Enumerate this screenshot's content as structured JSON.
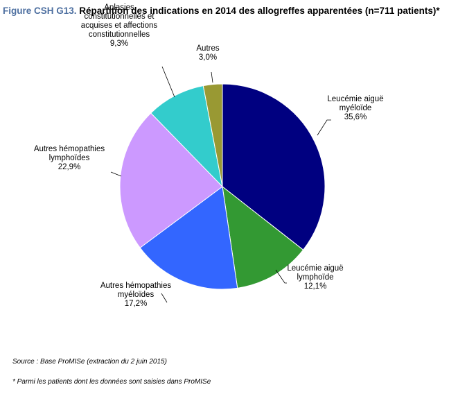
{
  "figure": {
    "prefix": "Figure CSH G13.",
    "title": "Répartition des indications en 2014 des allogreffes apparentées (n=711 patients)*"
  },
  "chart_data": {
    "type": "pie",
    "start_angle_deg": 0,
    "direction": "clockwise",
    "slices": [
      {
        "label_lines": [
          "Leucémie aiguë",
          "myéloïde"
        ],
        "value": 35.6,
        "pct_text": "35,6%",
        "color": "#000080"
      },
      {
        "label_lines": [
          "Leucémie aiguë",
          "lymphoïde"
        ],
        "value": 12.1,
        "pct_text": "12,1%",
        "color": "#339933"
      },
      {
        "label_lines": [
          "Autres hémopathies",
          "myéloïdes"
        ],
        "value": 17.2,
        "pct_text": "17,2%",
        "color": "#3366ff"
      },
      {
        "label_lines": [
          "Autres hémopathies",
          "lymphoïdes"
        ],
        "value": 22.9,
        "pct_text": "22,9%",
        "color": "#cc99ff"
      },
      {
        "label_lines": [
          "Aplasies",
          "constitutionnelles et",
          "acquises et affections",
          "constitutionnelles"
        ],
        "value": 9.3,
        "pct_text": "9,3%",
        "color": "#33cccc"
      },
      {
        "label_lines": [
          "Autres"
        ],
        "value": 3.0,
        "pct_text": "3,0%",
        "color": "#999933"
      }
    ]
  },
  "notes": {
    "source": "Source : Base ProMISe (extraction du 2 juin 2015)",
    "footnote": "* Parmi les patients dont les données sont saisies dans ProMISe"
  }
}
